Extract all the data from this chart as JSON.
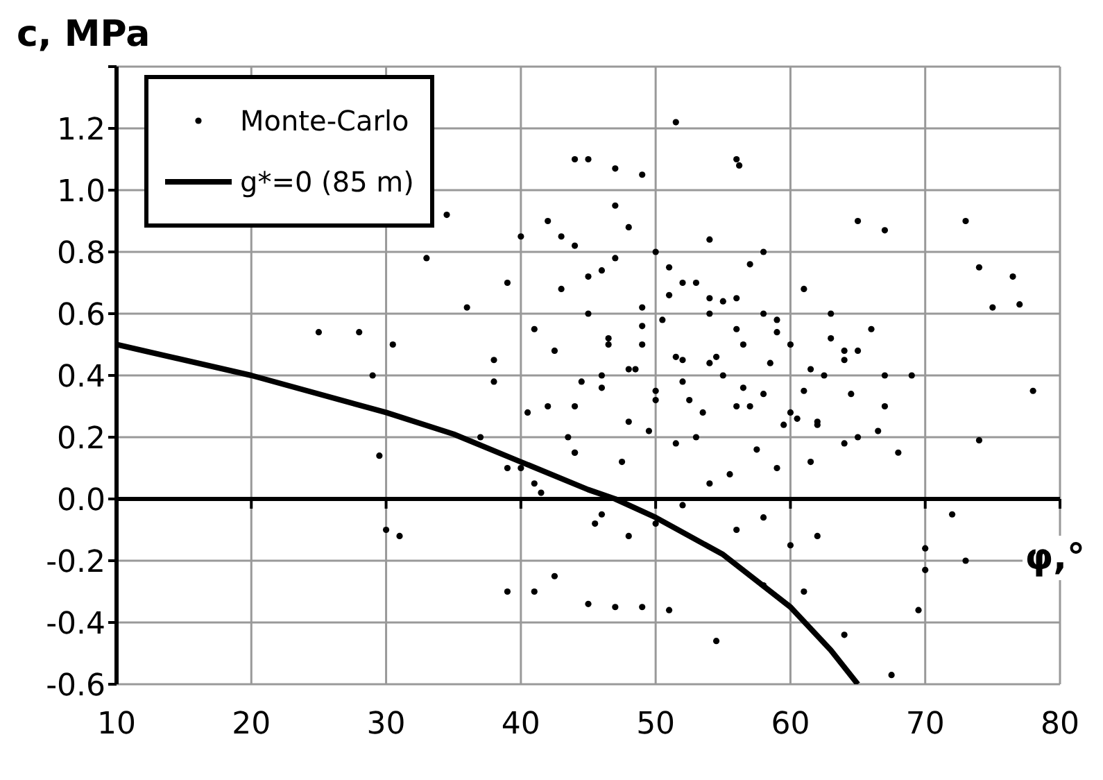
{
  "chart_data": {
    "type": "scatter",
    "xlabel": "φ,°",
    "ylabel": "c, MPa",
    "xlim": [
      10,
      80
    ],
    "xticks": [
      10,
      20,
      30,
      40,
      50,
      60,
      70,
      80
    ],
    "ylim": [
      -0.6,
      1.4
    ],
    "yticks": [
      -0.6,
      -0.4,
      -0.2,
      {
        "value": 0,
        "label": "0.0"
      },
      0.2,
      0.4,
      0.6,
      0.8,
      {
        "value": 1,
        "label": "1.0"
      },
      1.2,
      {
        "value": 1.4,
        "label": null
      }
    ],
    "grid": true,
    "legend": "top left",
    "ref_lines": [
      {
        "axis": "y",
        "value": 0,
        "color": "#000000"
      }
    ],
    "series": [
      {
        "name": "Monte-Carlo",
        "color": "#000000",
        "marker": "circle",
        "x": [
          25,
          28,
          30.5,
          29,
          29.5,
          30,
          31,
          33,
          34.5,
          51.5,
          44,
          45,
          47,
          49,
          56,
          56.2,
          65,
          67,
          73,
          74,
          76.5,
          77,
          75,
          78,
          74,
          72,
          73,
          70,
          69.5,
          67.5,
          54.5,
          64,
          45,
          47,
          49,
          51,
          39,
          41,
          61,
          42.5,
          58,
          70,
          36,
          37,
          38,
          39,
          40,
          41,
          42,
          43,
          44,
          45,
          46,
          47,
          48,
          49,
          50,
          51,
          52,
          53,
          54,
          55,
          56,
          57,
          58,
          59,
          60,
          61,
          62,
          63,
          64,
          65,
          66,
          67,
          68,
          69,
          40.5,
          42.5,
          44.5,
          46.5,
          48.5,
          50.5,
          52.5,
          54.5,
          56.5,
          58.5,
          60.5,
          62.5,
          64.5,
          66.5,
          41,
          43,
          45,
          47,
          49,
          51,
          53,
          55,
          57,
          59,
          61,
          63,
          65,
          67,
          44,
          46,
          48,
          50,
          52,
          54,
          56,
          58,
          60,
          62,
          45.5,
          47.5,
          49.5,
          51.5,
          53.5,
          55.5,
          57.5,
          59.5,
          61.5,
          43.5,
          46,
          48,
          50,
          52,
          54,
          56,
          58,
          60,
          62,
          64,
          39,
          41.5,
          44,
          46.5,
          49,
          51.5,
          54,
          56.5,
          59,
          61.5,
          64,
          38,
          40,
          42,
          44,
          46,
          48,
          50,
          52,
          54,
          56,
          58
        ],
        "values": [
          0.54,
          0.54,
          0.5,
          0.4,
          0.14,
          -0.1,
          -0.12,
          0.78,
          0.92,
          1.22,
          1.1,
          1.1,
          1.07,
          1.05,
          1.1,
          1.08,
          0.9,
          0.87,
          0.9,
          0.75,
          0.72,
          0.63,
          0.62,
          0.35,
          0.19,
          -0.05,
          -0.2,
          -0.23,
          -0.36,
          -0.57,
          -0.46,
          -0.44,
          -0.34,
          -0.35,
          -0.35,
          -0.36,
          -0.3,
          -0.3,
          -0.3,
          -0.25,
          -0.28,
          -0.16,
          0.62,
          0.2,
          0.45,
          0.7,
          0.1,
          0.55,
          0.3,
          0.85,
          0.15,
          0.6,
          0.4,
          0.95,
          0.25,
          0.5,
          0.35,
          0.75,
          0.45,
          0.2,
          0.65,
          0.4,
          0.55,
          0.3,
          0.8,
          0.1,
          0.5,
          0.35,
          0.25,
          0.6,
          0.45,
          0.2,
          0.55,
          0.3,
          0.15,
          0.4,
          0.28,
          0.48,
          0.38,
          0.52,
          0.42,
          0.58,
          0.32,
          0.46,
          0.36,
          0.44,
          0.26,
          0.4,
          0.34,
          0.22,
          0.05,
          0.68,
          0.72,
          0.78,
          0.62,
          0.66,
          0.7,
          0.64,
          0.76,
          0.58,
          0.68,
          0.52,
          0.48,
          0.4,
          0.3,
          -0.05,
          -0.12,
          -0.08,
          -0.02,
          0.05,
          -0.1,
          -0.06,
          -0.15,
          -0.12,
          -0.08,
          0.12,
          0.22,
          0.18,
          0.28,
          0.08,
          0.16,
          0.24,
          0.12,
          0.2,
          0.36,
          0.42,
          0.32,
          0.38,
          0.44,
          0.3,
          0.34,
          0.28,
          0.24,
          0.18,
          0.1,
          0.02,
          0.15,
          0.5,
          0.56,
          0.46,
          0.6,
          0.5,
          0.54,
          0.42,
          0.48,
          0.38,
          0.85,
          0.9,
          0.82,
          0.74,
          0.88,
          0.8,
          0.7,
          0.84,
          0.65,
          0.6
        ]
      },
      {
        "name": "g*=0 (85 m)",
        "type": "line",
        "color": "#000000",
        "marker": "none",
        "line_style": "solid",
        "x": [
          10,
          20,
          30,
          35,
          40,
          45,
          47,
          50,
          55,
          60,
          63,
          65
        ],
        "values": [
          0.5,
          0.4,
          0.28,
          0.21,
          0.12,
          0.03,
          0,
          -0.06,
          -0.18,
          -0.35,
          -0.49,
          -0.6
        ]
      }
    ]
  }
}
